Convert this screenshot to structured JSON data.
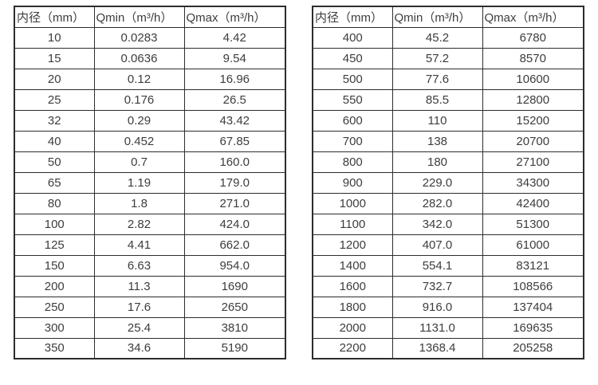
{
  "colors": {
    "background": "#ffffff",
    "border": "#2d2d2d",
    "text": "#3d3d3d"
  },
  "chart_data": [
    {
      "type": "table",
      "title": "",
      "columns": [
        "内径（mm）",
        "Qmin（m³/h）",
        "Qmax（m³/h）"
      ],
      "rows": [
        [
          "10",
          "0.0283",
          "4.42"
        ],
        [
          "15",
          "0.0636",
          "9.54"
        ],
        [
          "20",
          "0.12",
          "16.96"
        ],
        [
          "25",
          "0.176",
          "26.5"
        ],
        [
          "32",
          "0.29",
          "43.42"
        ],
        [
          "40",
          "0.452",
          "67.85"
        ],
        [
          "50",
          "0.7",
          "160.0"
        ],
        [
          "65",
          "1.19",
          "179.0"
        ],
        [
          "80",
          "1.8",
          "271.0"
        ],
        [
          "100",
          "2.82",
          "424.0"
        ],
        [
          "125",
          "4.41",
          "662.0"
        ],
        [
          "150",
          "6.63",
          "954.0"
        ],
        [
          "200",
          "11.3",
          "1690"
        ],
        [
          "250",
          "17.6",
          "2650"
        ],
        [
          "300",
          "25.4",
          "3810"
        ],
        [
          "350",
          "34.6",
          "5190"
        ]
      ]
    },
    {
      "type": "table",
      "title": "",
      "columns": [
        "内径（mm）",
        "Qmin（m³/h）",
        "Qmax（m³/h）"
      ],
      "rows": [
        [
          "400",
          "45.2",
          "6780"
        ],
        [
          "450",
          "57.2",
          "8570"
        ],
        [
          "500",
          "77.6",
          "10600"
        ],
        [
          "550",
          "85.5",
          "12800"
        ],
        [
          "600",
          "110",
          "15200"
        ],
        [
          "700",
          "138",
          "20700"
        ],
        [
          "800",
          "180",
          "27100"
        ],
        [
          "900",
          "229.0",
          "34300"
        ],
        [
          "1000",
          "282.0",
          "42400"
        ],
        [
          "1100",
          "342.0",
          "51300"
        ],
        [
          "1200",
          "407.0",
          "61000"
        ],
        [
          "1400",
          "554.1",
          "83121"
        ],
        [
          "1600",
          "732.7",
          "108566"
        ],
        [
          "1800",
          "916.0",
          "137404"
        ],
        [
          "2000",
          "1131.0",
          "169635"
        ],
        [
          "2200",
          "1368.4",
          "205258"
        ]
      ]
    }
  ]
}
